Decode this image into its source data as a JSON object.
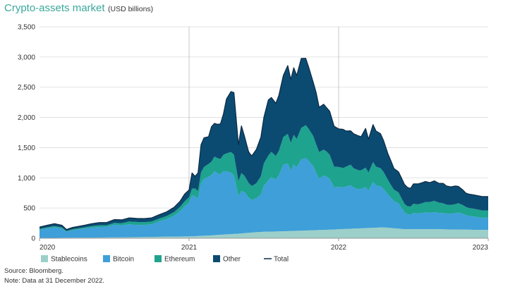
{
  "title": "Crypto-assets market",
  "title_unit": "(USD billions)",
  "source": "Source: Bloomberg.",
  "note": "Note: Data at 31 December 2022.",
  "colors": {
    "Stablecoins": "#9ccfc9",
    "Bitcoin": "#3e9fd9",
    "Ethereum": "#1ea38f",
    "Other": "#0b4b72",
    "Total": "#0d2a44",
    "grid": "#d9d9d9",
    "axis": "#999999",
    "vline": "#bbbbbb"
  },
  "chart_data": {
    "type": "area",
    "stacked": true,
    "title": "Crypto-assets market",
    "ylabel": "USD billions",
    "ylim": [
      0,
      3500
    ],
    "xlim": [
      2020.0,
      2023.0
    ],
    "yticks": [
      0,
      500,
      1000,
      1500,
      2000,
      2500,
      3000,
      3500
    ],
    "ytick_labels": [
      "0",
      "500",
      "1,000",
      "1,500",
      "2,000",
      "2,500",
      "3,000",
      "3,500"
    ],
    "xticks": [
      2020,
      2021,
      2022,
      2023
    ],
    "xtick_labels": [
      "2020",
      "2021",
      "2022",
      "2023"
    ],
    "vertical_gridlines_at": [
      2021,
      2022
    ],
    "legend_position": "bottom",
    "x": [
      2020.0,
      2020.05,
      2020.1,
      2020.15,
      2020.18,
      2020.22,
      2020.3,
      2020.35,
      2020.4,
      2020.45,
      2020.5,
      2020.55,
      2020.6,
      2020.65,
      2020.7,
      2020.75,
      2020.8,
      2020.85,
      2020.9,
      2020.94,
      2020.97,
      2021.0,
      2021.02,
      2021.04,
      2021.06,
      2021.08,
      2021.1,
      2021.13,
      2021.15,
      2021.17,
      2021.19,
      2021.21,
      2021.23,
      2021.25,
      2021.28,
      2021.3,
      2021.33,
      2021.35,
      2021.37,
      2021.4,
      2021.42,
      2021.45,
      2021.48,
      2021.5,
      2021.53,
      2021.55,
      2021.58,
      2021.6,
      2021.63,
      2021.66,
      2021.68,
      2021.7,
      2021.72,
      2021.75,
      2021.78,
      2021.8,
      2021.83,
      2021.85,
      2021.87,
      2021.9,
      2021.92,
      2021.94,
      2021.97,
      2022.0,
      2022.03,
      2022.05,
      2022.08,
      2022.1,
      2022.13,
      2022.15,
      2022.18,
      2022.2,
      2022.23,
      2022.25,
      2022.28,
      2022.3,
      2022.33,
      2022.35,
      2022.37,
      2022.4,
      2022.42,
      2022.44,
      2022.46,
      2022.48,
      2022.5,
      2022.53,
      2022.56,
      2022.58,
      2022.61,
      2022.64,
      2022.67,
      2022.7,
      2022.72,
      2022.75,
      2022.78,
      2022.8,
      2022.83,
      2022.85,
      2022.87,
      2022.9,
      2022.93,
      2022.96,
      2023.0
    ],
    "series": [
      {
        "name": "Stablecoins",
        "values": [
          5,
          5,
          6,
          7,
          8,
          9,
          10,
          11,
          12,
          13,
          14,
          15,
          17,
          19,
          20,
          22,
          25,
          27,
          28,
          29,
          30,
          30,
          32,
          34,
          37,
          40,
          42,
          45,
          48,
          52,
          55,
          58,
          62,
          65,
          68,
          72,
          76,
          80,
          85,
          90,
          95,
          100,
          105,
          108,
          110,
          110,
          112,
          113,
          115,
          118,
          120,
          122,
          124,
          126,
          128,
          130,
          132,
          134,
          136,
          138,
          140,
          142,
          145,
          150,
          152,
          155,
          158,
          160,
          162,
          165,
          168,
          170,
          172,
          175,
          180,
          180,
          175,
          170,
          165,
          160,
          155,
          152,
          150,
          150,
          150,
          150,
          150,
          150,
          150,
          150,
          150,
          148,
          147,
          146,
          145,
          145,
          145,
          144,
          142,
          140,
          140,
          140,
          140
        ]
      },
      {
        "name": "Bitcoin",
        "values": [
          135,
          160,
          175,
          155,
          100,
          125,
          150,
          165,
          175,
          175,
          210,
          200,
          215,
          200,
          200,
          210,
          255,
          290,
          345,
          420,
          500,
          560,
          680,
          660,
          620,
          870,
          940,
          970,
          1000,
          1060,
          1020,
          1000,
          1050,
          1040,
          1020,
          960,
          620,
          700,
          680,
          580,
          540,
          560,
          620,
          760,
          850,
          900,
          860,
          930,
          1100,
          1120,
          1000,
          1100,
          1050,
          1180,
          1200,
          1150,
          1060,
          950,
          850,
          900,
          880,
          840,
          700,
          700,
          690,
          700,
          720,
          680,
          650,
          650,
          680,
          620,
          760,
          700,
          680,
          640,
          550,
          500,
          450,
          420,
          350,
          280,
          250,
          240,
          270,
          260,
          270,
          280,
          270,
          280,
          270,
          270,
          260,
          260,
          270,
          280,
          260,
          240,
          230,
          220,
          210,
          200,
          200
        ]
      },
      {
        "name": "Ethereum",
        "values": [
          15,
          15,
          20,
          18,
          12,
          15,
          20,
          25,
          28,
          28,
          30,
          35,
          45,
          50,
          45,
          45,
          45,
          50,
          60,
          70,
          80,
          90,
          110,
          130,
          125,
          180,
          200,
          215,
          220,
          240,
          250,
          255,
          270,
          300,
          340,
          350,
          250,
          300,
          270,
          240,
          230,
          250,
          300,
          370,
          410,
          420,
          390,
          400,
          460,
          490,
          460,
          490,
          470,
          520,
          545,
          530,
          500,
          470,
          440,
          430,
          415,
          400,
          340,
          330,
          320,
          330,
          340,
          320,
          315,
          310,
          320,
          300,
          330,
          310,
          300,
          280,
          240,
          210,
          190,
          180,
          160,
          140,
          130,
          135,
          150,
          150,
          160,
          170,
          180,
          190,
          170,
          160,
          150,
          145,
          150,
          155,
          145,
          135,
          130,
          130,
          125,
          120,
          120
        ]
      },
      {
        "name": "Other",
        "values": [
          30,
          35,
          40,
          35,
          25,
          30,
          35,
          40,
          45,
          45,
          55,
          55,
          60,
          60,
          60,
          60,
          65,
          70,
          80,
          95,
          120,
          120,
          260,
          200,
          300,
          460,
          480,
          450,
          580,
          550,
          560,
          580,
          680,
          900,
          1000,
          1030,
          600,
          780,
          660,
          530,
          500,
          560,
          650,
          760,
          920,
          900,
          870,
          920,
          1020,
          1130,
          1050,
          1110,
          1050,
          1150,
          1105,
          1020,
          890,
          850,
          740,
          750,
          725,
          720,
          670,
          630,
          640,
          590,
          560,
          570,
          570,
          555,
          650,
          550,
          620,
          590,
          570,
          520,
          430,
          400,
          350,
          340,
          335,
          320,
          310,
          300,
          330,
          340,
          340,
          340,
          320,
          330,
          320,
          330,
          310,
          300,
          300,
          280,
          250,
          230,
          230,
          230,
          230,
          230,
          230
        ]
      },
      {
        "name": "Total",
        "values": [
          185,
          215,
          241,
          215,
          145,
          179,
          215,
          241,
          260,
          261,
          309,
          305,
          337,
          329,
          325,
          337,
          390,
          437,
          513,
          614,
          730,
          800,
          1082,
          1024,
          1082,
          1550,
          1662,
          1680,
          1848,
          1902,
          1885,
          1893,
          2062,
          2305,
          2428,
          2412,
          1546,
          1860,
          1695,
          1410,
          1365,
          1470,
          1675,
          1998,
          2290,
          2330,
          2234,
          2363,
          2695,
          2858,
          2630,
          2822,
          2694,
          2976,
          2978,
          2830,
          2582,
          2409,
          2166,
          2218,
          2160,
          2102,
          1855,
          1810,
          1802,
          1775,
          1778,
          1730,
          1697,
          1680,
          1818,
          1640,
          1882,
          1775,
          1730,
          1620,
          1395,
          1280,
          1155,
          1100,
          1000,
          892,
          842,
          825,
          900,
          900,
          920,
          940,
          920,
          950,
          910,
          908,
          867,
          851,
          865,
          860,
          800,
          749,
          732,
          720,
          705,
          690,
          690
        ]
      }
    ],
    "legend": [
      "Stablecoins",
      "Bitcoin",
      "Ethereum",
      "Other",
      "Total"
    ]
  }
}
